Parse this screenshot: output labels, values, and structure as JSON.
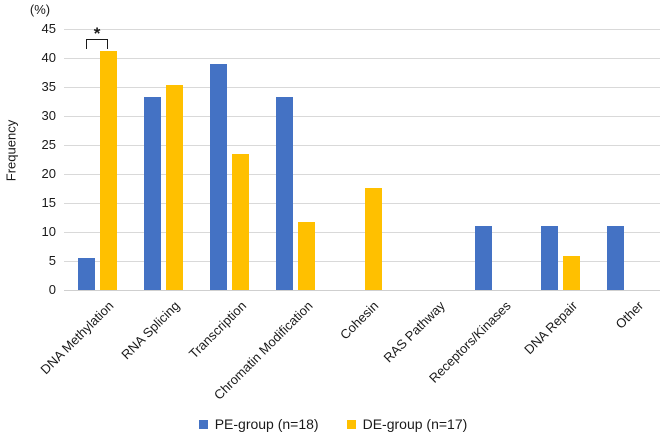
{
  "chart_data": {
    "type": "bar",
    "title": "",
    "ylabel": "Frequency",
    "unit_label": "(%)",
    "xlabel": "",
    "ylim": [
      0,
      45
    ],
    "ytick_step": 5,
    "grid": true,
    "legend_position": "bottom",
    "categories": [
      "DNA Methylation",
      "RNA Splicing",
      "Transcription",
      "Chromatin Modification",
      "Cohesin",
      "RAS Pathway",
      "Receptors/Kinases",
      "DNA Repair",
      "Other"
    ],
    "series": [
      {
        "name": "PE-group (n=18)",
        "color": "#4472C4",
        "values": [
          5.6,
          33.3,
          38.9,
          33.3,
          0,
          0,
          11.1,
          11.1,
          11.1
        ]
      },
      {
        "name": "DE-group (n=17)",
        "color": "#FFC000",
        "values": [
          41.2,
          35.3,
          23.5,
          11.8,
          17.6,
          0,
          0,
          5.9,
          0
        ]
      }
    ],
    "annotation": {
      "symbol": "*",
      "category": "DNA Methylation"
    },
    "colors": {
      "gridline": "#d9d9d9",
      "text": "#1a1a1a"
    }
  }
}
